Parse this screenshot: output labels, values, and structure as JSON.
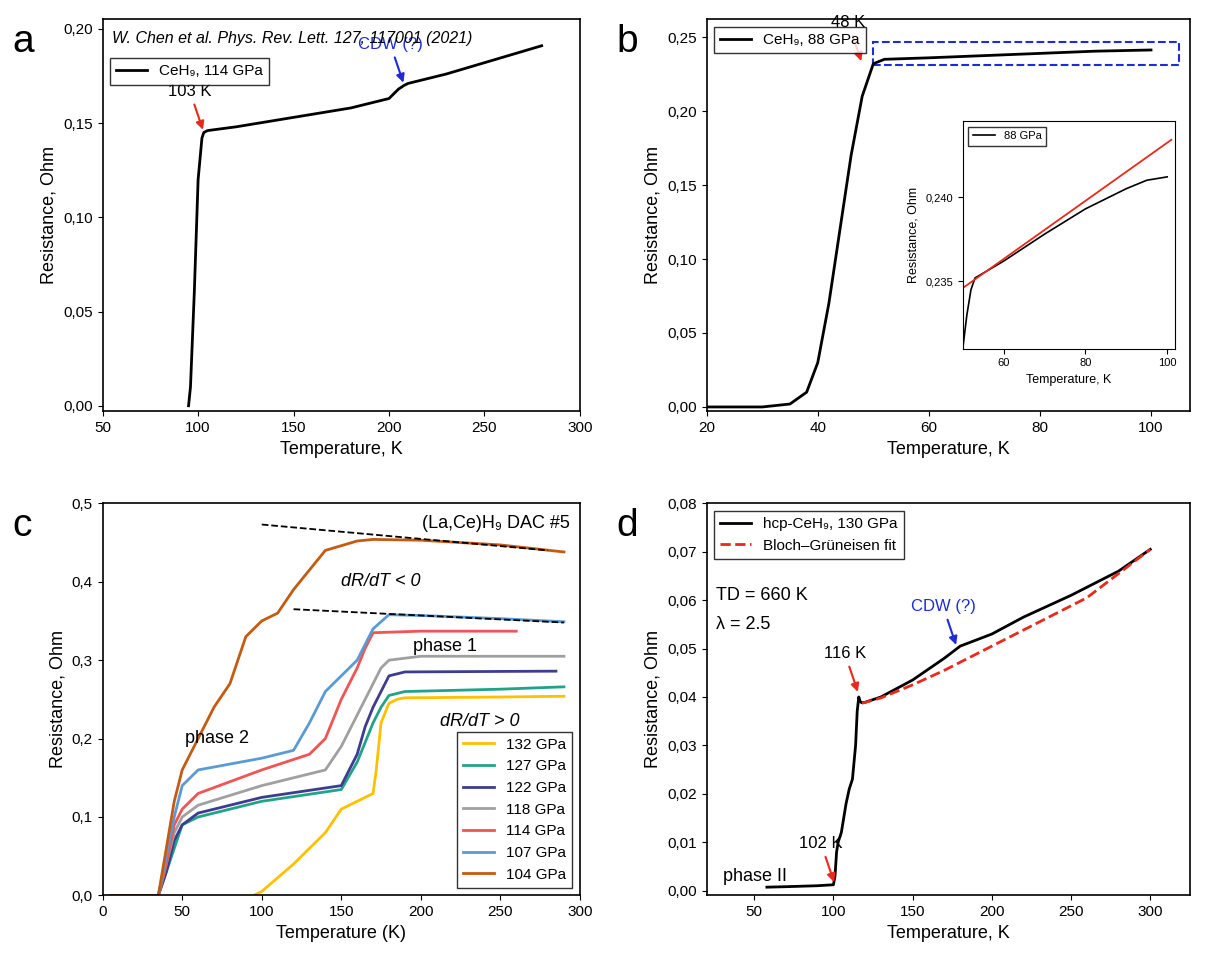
{
  "chart_data": [
    {
      "type": "line",
      "panel": "a",
      "reference": "W. Chen et al. Phys. Rev. Lett. 127, 117001 (2021)",
      "x_label": "Temperature, K",
      "y_label": "Resistance, Ohm",
      "xlim": [
        50,
        300
      ],
      "xticks": [
        50,
        100,
        150,
        200,
        250,
        300
      ],
      "ylim": [
        -0.003,
        0.205
      ],
      "yticks": [
        {
          "value": 0,
          "label": "0,00"
        },
        {
          "value": 0.05,
          "label": "0,05"
        },
        {
          "value": 0.1,
          "label": "0,10"
        },
        {
          "value": 0.15,
          "label": "0,15"
        },
        {
          "value": 0.2,
          "label": "0,20"
        }
      ],
      "legend": "upper left",
      "series": [
        {
          "name": "CeH₉, 114 GPa",
          "color": "#000000",
          "line_style": "solid",
          "x": [
            95,
            96,
            98,
            100,
            102,
            103,
            105,
            120,
            150,
            180,
            200,
            205,
            208,
            210,
            230,
            250,
            280
          ],
          "values": [
            0,
            0.01,
            0.06,
            0.12,
            0.142,
            0.145,
            0.146,
            0.148,
            0.153,
            0.158,
            0.163,
            0.168,
            0.17,
            0.171,
            0.176,
            0.182,
            0.191
          ]
        }
      ],
      "annotations": [
        {
          "text": "103 K",
          "x": 103,
          "y": 0.145,
          "color": "#e8291c",
          "arrow": true
        },
        {
          "text": "CDW (?)",
          "x": 208,
          "y": 0.17,
          "color": "#1f2bd6",
          "arrow": true
        }
      ]
    },
    {
      "type": "line",
      "panel": "b",
      "x_label": "Temperature, K",
      "y_label": "Resistance, Ohm",
      "xlim": [
        20,
        107
      ],
      "xticks": [
        20,
        40,
        60,
        80,
        100
      ],
      "ylim": [
        -0.003,
        0.262
      ],
      "yticks": [
        {
          "value": 0,
          "label": "0,00"
        },
        {
          "value": 0.05,
          "label": "0,05"
        },
        {
          "value": 0.1,
          "label": "0,10"
        },
        {
          "value": 0.15,
          "label": "0,15"
        },
        {
          "value": 0.2,
          "label": "0,20"
        },
        {
          "value": 0.25,
          "label": "0,25"
        }
      ],
      "legend": "upper left",
      "series": [
        {
          "name": "CeH₉, 88 GPa",
          "color": "#000000",
          "line_style": "solid",
          "x": [
            20,
            30,
            35,
            38,
            40,
            42,
            44,
            46,
            48,
            50,
            52,
            60,
            70,
            80,
            90,
            100
          ],
          "values": [
            0,
            0,
            0.002,
            0.01,
            0.03,
            0.07,
            0.12,
            0.17,
            0.21,
            0.232,
            0.235,
            0.236,
            0.2375,
            0.239,
            0.2405,
            0.2413
          ]
        }
      ],
      "highlight": {
        "xlim": [
          50,
          105
        ],
        "ylim": [
          0.231,
          0.247
        ],
        "color": "#1f2bd6"
      },
      "annotations": [
        {
          "text": "48 K",
          "x": 48,
          "y": 0.232,
          "color": "#e8291c",
          "arrow": true
        }
      ],
      "inset": {
        "type": "line",
        "x_label": "Temperature, K",
        "y_label": "Resistance, Ohm",
        "xlim": [
          50,
          102
        ],
        "xticks": [
          60,
          80,
          100
        ],
        "ylim": [
          0.231,
          0.2445
        ],
        "yticks": [
          {
            "value": 0.235,
            "label": "0,235"
          },
          {
            "value": 0.24,
            "label": "0,240"
          }
        ],
        "legend": "upper left",
        "series": [
          {
            "name": "88 GPa",
            "color": "#000000",
            "line_style": "solid",
            "x": [
              50,
              51,
              52,
              53,
              60,
              70,
              80,
              90,
              95,
              100
            ],
            "values": [
              0.231,
              0.233,
              0.2345,
              0.2352,
              0.2362,
              0.2378,
              0.2393,
              0.2405,
              0.241,
              0.2412
            ]
          }
        ],
        "reference_lines": [
          {
            "color": "#e8291c",
            "line_style": "solid",
            "x": [
              50,
              101
            ],
            "values": [
              0.2346,
              0.2434
            ]
          }
        ]
      }
    },
    {
      "type": "line",
      "panel": "c",
      "title": "(La,Ce)H₉ DAC #5",
      "x_label": "Temperature (K)",
      "y_label": "Resistance, Ohm",
      "xlim": [
        0,
        300
      ],
      "xticks": [
        0,
        50,
        100,
        150,
        200,
        250,
        300
      ],
      "ylim": [
        0,
        0.5
      ],
      "yticks": [
        {
          "value": 0,
          "label": "0,0"
        },
        {
          "value": 0.1,
          "label": "0,1"
        },
        {
          "value": 0.2,
          "label": "0,2"
        },
        {
          "value": 0.3,
          "label": "0,3"
        },
        {
          "value": 0.4,
          "label": "0,4"
        },
        {
          "value": 0.5,
          "label": "0,5"
        }
      ],
      "legend": "lower right",
      "series": [
        {
          "name": "132 GPa",
          "color": "#ffc000",
          "line_style": "solid",
          "x": [
            95,
            100,
            120,
            140,
            150,
            160,
            170,
            172,
            175,
            180,
            185,
            190,
            250,
            290
          ],
          "values": [
            0,
            0.005,
            0.04,
            0.08,
            0.11,
            0.12,
            0.13,
            0.16,
            0.22,
            0.245,
            0.25,
            0.252,
            0.253,
            0.254
          ]
        },
        {
          "name": "127 GPa",
          "color": "#21a38a",
          "line_style": "solid",
          "x": [
            5,
            35,
            40,
            45,
            50,
            60,
            100,
            150,
            160,
            170,
            175,
            180,
            190,
            250,
            290
          ],
          "values": [
            0,
            0,
            0.03,
            0.06,
            0.09,
            0.1,
            0.12,
            0.135,
            0.17,
            0.22,
            0.24,
            0.255,
            0.26,
            0.263,
            0.266
          ]
        },
        {
          "name": "122 GPa",
          "color": "#3d3d8f",
          "line_style": "solid",
          "x": [
            5,
            35,
            40,
            45,
            50,
            60,
            100,
            150,
            160,
            165,
            170,
            175,
            180,
            190,
            285
          ],
          "values": [
            0,
            0,
            0.03,
            0.07,
            0.09,
            0.105,
            0.125,
            0.14,
            0.18,
            0.215,
            0.24,
            0.26,
            0.28,
            0.285,
            0.286
          ]
        },
        {
          "name": "118 GPa",
          "color": "#a0a0a0",
          "line_style": "solid",
          "x": [
            5,
            35,
            40,
            45,
            50,
            60,
            100,
            140,
            150,
            160,
            165,
            175,
            180,
            200,
            290
          ],
          "values": [
            0,
            0,
            0.04,
            0.08,
            0.1,
            0.115,
            0.14,
            0.16,
            0.19,
            0.23,
            0.25,
            0.29,
            0.3,
            0.305,
            0.305
          ]
        },
        {
          "name": "114 GPa",
          "color": "#f05454",
          "line_style": "solid",
          "x": [
            5,
            35,
            40,
            45,
            50,
            60,
            100,
            130,
            140,
            150,
            155,
            160,
            165,
            170,
            200,
            260
          ],
          "values": [
            0,
            0,
            0.04,
            0.09,
            0.11,
            0.13,
            0.16,
            0.18,
            0.2,
            0.25,
            0.27,
            0.29,
            0.315,
            0.335,
            0.337,
            0.337
          ]
        },
        {
          "name": "107 GPa",
          "color": "#5b9bd5",
          "line_style": "solid",
          "x": [
            5,
            35,
            40,
            45,
            50,
            60,
            100,
            120,
            130,
            140,
            150,
            160,
            170,
            180,
            200,
            250,
            290
          ],
          "values": [
            0,
            0,
            0.05,
            0.1,
            0.14,
            0.16,
            0.175,
            0.185,
            0.22,
            0.26,
            0.28,
            0.3,
            0.34,
            0.358,
            0.357,
            0.353,
            0.349
          ]
        },
        {
          "name": "104 GPa",
          "color": "#c55a11",
          "line_style": "solid",
          "x": [
            5,
            35,
            40,
            45,
            50,
            60,
            70,
            80,
            85,
            90,
            100,
            110,
            120,
            140,
            160,
            170,
            200,
            250,
            290
          ],
          "values": [
            0,
            0,
            0.06,
            0.12,
            0.16,
            0.2,
            0.24,
            0.27,
            0.3,
            0.33,
            0.35,
            0.36,
            0.39,
            0.44,
            0.452,
            0.454,
            0.453,
            0.447,
            0.438
          ]
        }
      ],
      "reference_lines": [
        {
          "color": "#000000",
          "line_style": "dashed",
          "x": [
            100,
            280
          ],
          "values": [
            0.473,
            0.44
          ]
        },
        {
          "color": "#000000",
          "line_style": "dashed",
          "x": [
            120,
            290
          ],
          "values": [
            0.365,
            0.348
          ]
        }
      ],
      "annotations": [
        {
          "text": "phase 1",
          "x": 195,
          "y": 0.318,
          "color": "#000000",
          "arrow": false
        },
        {
          "text": "phase 2",
          "x": 52,
          "y": 0.2,
          "color": "#000000",
          "arrow": false
        },
        {
          "text": "dR/dT < 0",
          "x": 150,
          "y": 0.4,
          "color": "#000000",
          "arrow": false
        },
        {
          "text": "dR/dT > 0",
          "x": 212,
          "y": 0.222,
          "color": "#000000",
          "arrow": false
        }
      ]
    },
    {
      "type": "line",
      "panel": "d",
      "x_label": "Temperature, K",
      "y_label": "Resistance, Ohm",
      "xlim": [
        20,
        325
      ],
      "xticks": [
        50,
        100,
        150,
        200,
        250,
        300
      ],
      "ylim": [
        -0.001,
        0.08
      ],
      "yticks": [
        {
          "value": 0,
          "label": "0,00"
        },
        {
          "value": 0.01,
          "label": "0,01"
        },
        {
          "value": 0.02,
          "label": "0,02"
        },
        {
          "value": 0.03,
          "label": "0,03"
        },
        {
          "value": 0.04,
          "label": "0,04"
        },
        {
          "value": 0.05,
          "label": "0,05"
        },
        {
          "value": 0.06,
          "label": "0,06"
        },
        {
          "value": 0.07,
          "label": "0,07"
        },
        {
          "value": 0.08,
          "label": "0,08"
        }
      ],
      "legend": "upper left",
      "series": [
        {
          "name": "hcp-CeH₉, 130 GPa",
          "color": "#000000",
          "line_style": "solid",
          "x": [
            58,
            70,
            90,
            100,
            101,
            102,
            103,
            105,
            108,
            110,
            112,
            114,
            115,
            116,
            117,
            118,
            120,
            130,
            150,
            170,
            180,
            200,
            220,
            250,
            280,
            300
          ],
          "values": [
            0.0007,
            0.0008,
            0.001,
            0.0012,
            0.003,
            0.008,
            0.01,
            0.012,
            0.018,
            0.021,
            0.023,
            0.03,
            0.037,
            0.04,
            0.039,
            0.0388,
            0.0389,
            0.04,
            0.0435,
            0.048,
            0.0505,
            0.053,
            0.0565,
            0.061,
            0.066,
            0.0705
          ]
        },
        {
          "name": "Bloch–Grüneisen fit",
          "color": "#e8291c",
          "line_style": "dashed",
          "x": [
            118,
            130,
            150,
            170,
            200,
            230,
            260,
            300
          ],
          "values": [
            0.0387,
            0.0398,
            0.0425,
            0.0455,
            0.0505,
            0.0555,
            0.0605,
            0.0705
          ]
        }
      ],
      "annotations": [
        {
          "text": "TD = 660 K",
          "x": 26,
          "y": 0.061,
          "color": "#000000",
          "arrow": false
        },
        {
          "text": "λ = 2.5",
          "x": 26,
          "y": 0.055,
          "color": "#000000",
          "arrow": false
        },
        {
          "text": "116 K",
          "x": 116,
          "y": 0.0405,
          "color": "#e8291c",
          "arrow": true
        },
        {
          "text": "102 K",
          "x": 101,
          "y": 0.0012,
          "color": "#e8291c",
          "arrow": true
        },
        {
          "text": "CDW (?)",
          "x": 178,
          "y": 0.0502,
          "color": "#1f2bd6",
          "arrow": true
        },
        {
          "text": "phase II",
          "x": 30,
          "y": 0.003,
          "color": "#000000",
          "arrow": false
        }
      ]
    }
  ]
}
